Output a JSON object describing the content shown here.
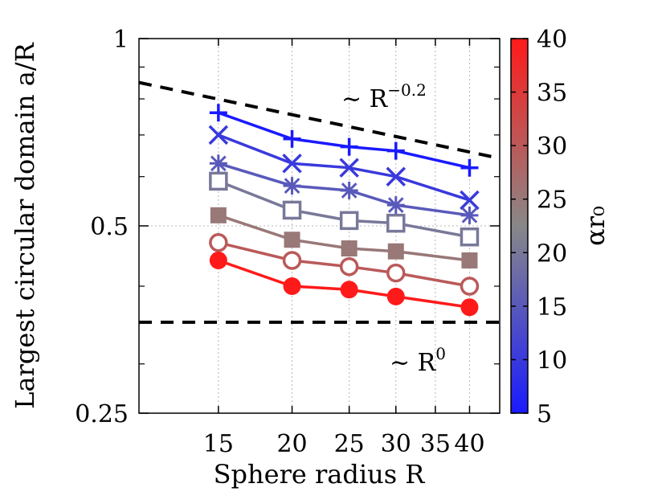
{
  "chart_data": {
    "type": "line",
    "xlabel": "Sphere radius R",
    "ylabel": "Largest circular domain a/R",
    "xscale": "log",
    "yscale": "log",
    "xlim": [
      11,
      45
    ],
    "ylim": [
      0.25,
      1
    ],
    "x_ticks": [
      15,
      20,
      25,
      30,
      35,
      40
    ],
    "y_ticks": [
      0.25,
      0.5,
      1
    ],
    "y_minor_ticks": [
      0.3,
      0.4,
      0.6,
      0.7,
      0.8,
      0.9
    ],
    "grid": true,
    "x": [
      15,
      20,
      25,
      30,
      40
    ],
    "colorbar": {
      "label": "αr₀",
      "min": 5,
      "max": 40,
      "ticks": [
        5,
        10,
        15,
        20,
        25,
        30,
        35,
        40
      ],
      "color_low": "#1a1aff",
      "color_mid": "#888888",
      "color_high": "#ff1a1a"
    },
    "series": [
      {
        "color_value": 5,
        "marker": "plus",
        "values": [
          0.76,
          0.69,
          0.67,
          0.66,
          0.62
        ]
      },
      {
        "color_value": 10,
        "marker": "cross",
        "values": [
          0.7,
          0.63,
          0.62,
          0.6,
          0.55
        ]
      },
      {
        "color_value": 15,
        "marker": "star",
        "values": [
          0.63,
          0.58,
          0.57,
          0.54,
          0.52
        ]
      },
      {
        "color_value": 20,
        "marker": "open-square",
        "values": [
          0.59,
          0.53,
          0.51,
          0.505,
          0.48
        ]
      },
      {
        "color_value": 25,
        "marker": "filled-square",
        "values": [
          0.52,
          0.475,
          0.46,
          0.455,
          0.44
        ]
      },
      {
        "color_value": 30,
        "marker": "open-circle",
        "values": [
          0.47,
          0.44,
          0.43,
          0.42,
          0.4
        ]
      },
      {
        "color_value": 40,
        "marker": "filled-circle",
        "values": [
          0.44,
          0.4,
          0.395,
          0.385,
          0.37
        ]
      }
    ],
    "reference_lines": [
      {
        "label": "~ R^-0.2",
        "label_text": "∼ R",
        "label_sup": "−0.2",
        "x": [
          11,
          45
        ],
        "y": [
          0.85,
          0.642
        ],
        "style": "dashed"
      },
      {
        "label": "~ R^0",
        "label_text": "∼ R",
        "label_sup": "0",
        "x": [
          11,
          45
        ],
        "y": [
          0.35,
          0.35
        ],
        "style": "dashed"
      }
    ]
  }
}
